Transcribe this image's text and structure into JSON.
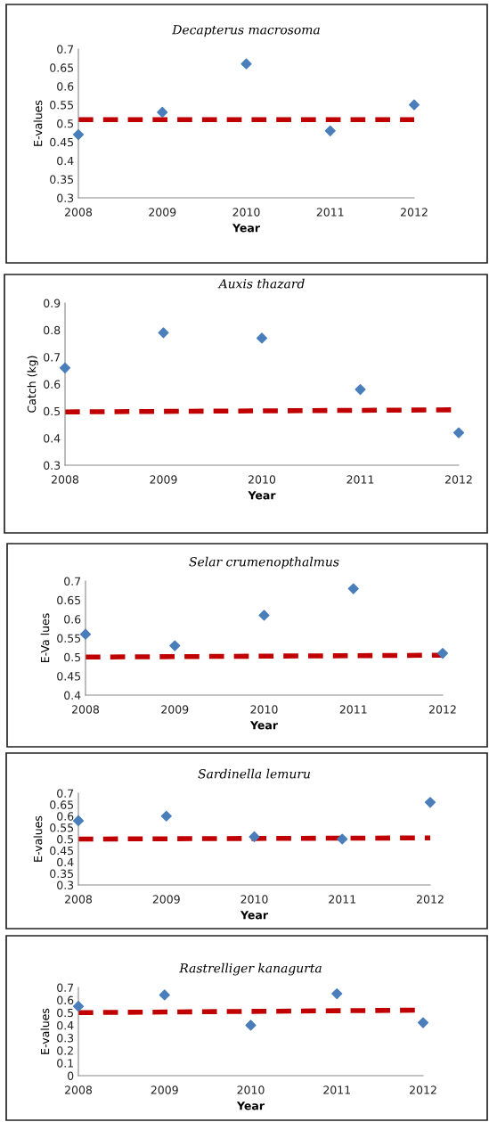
{
  "chart_data": [
    {
      "type": "scatter",
      "title": "Decapterus macrosoma",
      "xlabel": "Year",
      "ylabel": "E-values",
      "xlim": [
        2008,
        2012
      ],
      "xticks": [
        2008,
        2009,
        2010,
        2011,
        2012
      ],
      "ylim": [
        0.3,
        0.7
      ],
      "yticks": [
        0.3,
        0.35,
        0.4,
        0.45,
        0.5,
        0.55,
        0.6,
        0.65,
        0.7
      ],
      "grid": false,
      "legend": false,
      "marker": "diamond",
      "series": [
        {
          "color": "#4a7ebb",
          "x": [
            2008,
            2009,
            2010,
            2011,
            2012
          ],
          "values": [
            0.47,
            0.53,
            0.66,
            0.48,
            0.55
          ]
        },
        {
          "type": "line",
          "color": "#c00000",
          "line_style": "dashed",
          "marker": "none",
          "x": [
            2008,
            2012
          ],
          "values": [
            0.51,
            0.51
          ]
        }
      ]
    },
    {
      "type": "scatter",
      "title": "Auxis thazard",
      "xlabel": "Year",
      "ylabel": "Catch (kg)",
      "xlim": [
        2008,
        2012
      ],
      "xticks": [
        2008,
        2009,
        2010,
        2011,
        2012
      ],
      "ylim": [
        0.3,
        0.9
      ],
      "yticks": [
        0.3,
        0.4,
        0.5,
        0.6,
        0.7,
        0.8,
        0.9
      ],
      "grid": false,
      "legend": false,
      "marker": "diamond",
      "series": [
        {
          "color": "#4a7ebb",
          "x": [
            2008,
            2009,
            2010,
            2011,
            2012
          ],
          "values": [
            0.66,
            0.79,
            0.77,
            0.58,
            0.42
          ]
        },
        {
          "type": "line",
          "color": "#c00000",
          "line_style": "dashed",
          "marker": "none",
          "x": [
            2008,
            2012
          ],
          "values": [
            0.497,
            0.505
          ]
        }
      ]
    },
    {
      "type": "scatter",
      "title": "Selar crumenopthalmus",
      "xlabel": "Year",
      "ylabel": "E-Va lues",
      "xlim": [
        2008,
        2012
      ],
      "xticks": [
        2008,
        2009,
        2010,
        2011,
        2012
      ],
      "ylim": [
        0.4,
        0.7
      ],
      "yticks": [
        0.4,
        0.45,
        0.5,
        0.55,
        0.6,
        0.65,
        0.7
      ],
      "grid": false,
      "legend": false,
      "marker": "diamond",
      "series": [
        {
          "color": "#4a7ebb",
          "x": [
            2008,
            2009,
            2010,
            2011,
            2012
          ],
          "values": [
            0.56,
            0.53,
            0.61,
            0.68,
            0.51
          ]
        },
        {
          "type": "line",
          "color": "#c00000",
          "line_style": "dashed",
          "marker": "none",
          "x": [
            2008,
            2012
          ],
          "values": [
            0.5,
            0.505
          ]
        }
      ]
    },
    {
      "type": "scatter",
      "title": "Sardinella lemuru",
      "xlabel": "Year",
      "ylabel": "E-values",
      "xlim": [
        2008,
        2012
      ],
      "xticks": [
        2008,
        2009,
        2010,
        2011,
        2012
      ],
      "ylim": [
        0.3,
        0.7
      ],
      "yticks": [
        0.3,
        0.35,
        0.4,
        0.45,
        0.5,
        0.55,
        0.6,
        0.65,
        0.7
      ],
      "grid": false,
      "legend": false,
      "marker": "diamond",
      "series": [
        {
          "color": "#4a7ebb",
          "x": [
            2008,
            2009,
            2010,
            2011,
            2012
          ],
          "values": [
            0.58,
            0.6,
            0.51,
            0.5,
            0.66
          ]
        },
        {
          "type": "line",
          "color": "#c00000",
          "line_style": "dashed",
          "marker": "none",
          "x": [
            2008,
            2012
          ],
          "values": [
            0.5,
            0.505
          ]
        }
      ]
    },
    {
      "type": "scatter",
      "title": "Rastrelliger kanagurta",
      "xlabel": "Year",
      "ylabel": "E-values",
      "xlim": [
        2008,
        2012
      ],
      "xticks": [
        2008,
        2009,
        2010,
        2011,
        2012
      ],
      "ylim": [
        0,
        0.7
      ],
      "yticks": [
        0,
        0.1,
        0.2,
        0.3,
        0.4,
        0.5,
        0.6,
        0.7
      ],
      "grid": false,
      "legend": false,
      "marker": "diamond",
      "series": [
        {
          "color": "#4a7ebb",
          "x": [
            2008,
            2009,
            2010,
            2011,
            2012
          ],
          "values": [
            0.55,
            0.64,
            0.4,
            0.65,
            0.42
          ]
        },
        {
          "type": "line",
          "color": "#c00000",
          "line_style": "dashed",
          "marker": "none",
          "x": [
            2008,
            2012
          ],
          "values": [
            0.5,
            0.52
          ]
        }
      ]
    }
  ]
}
